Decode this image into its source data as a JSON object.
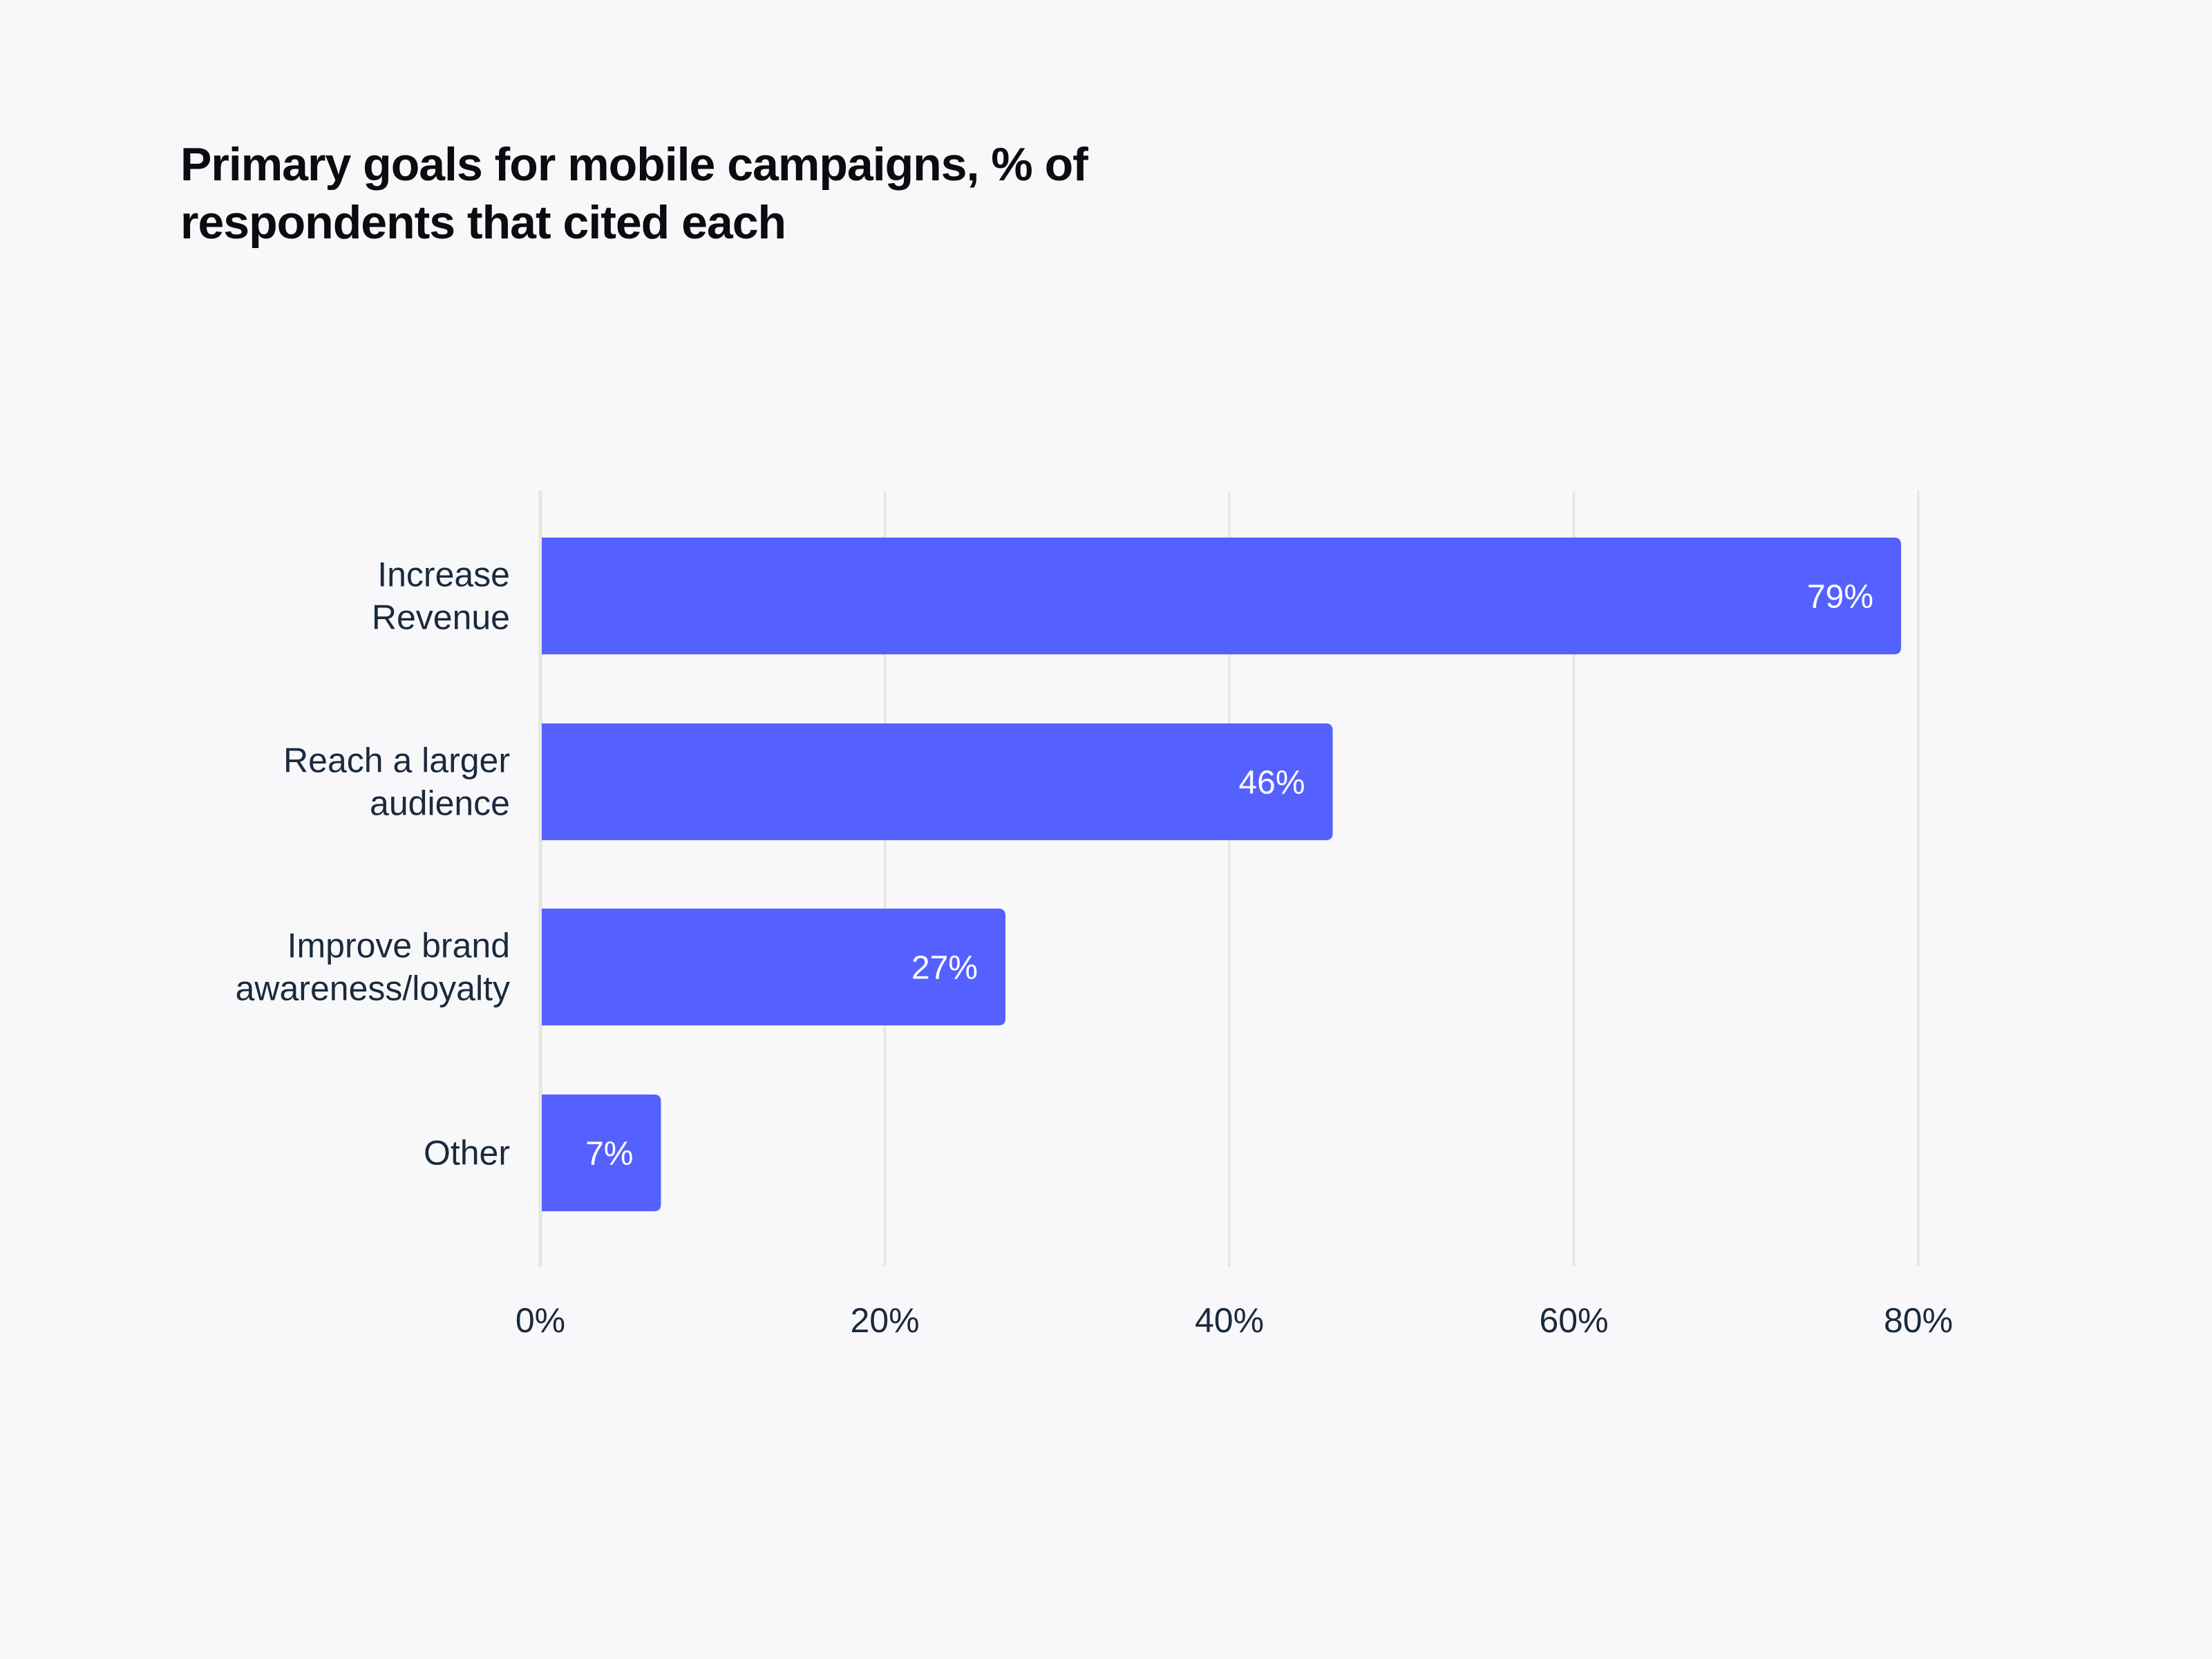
{
  "chart_data": {
    "type": "bar",
    "orientation": "horizontal",
    "title": "Primary goals for mobile campaigns, % of respondents that cited each",
    "categories": [
      [
        "Increase",
        "Revenue"
      ],
      [
        "Reach a larger",
        "audience"
      ],
      [
        "Improve brand",
        "awareness/loyalty"
      ],
      [
        "Other"
      ]
    ],
    "values": [
      79,
      46,
      27,
      7
    ],
    "value_labels": [
      "79%",
      "46%",
      "27%",
      "7%"
    ],
    "xlim": [
      0,
      80
    ],
    "xticks": [
      0,
      20,
      40,
      60,
      80
    ],
    "xtick_labels": [
      "0%",
      "20%",
      "40%",
      "60%",
      "80%"
    ],
    "xlabel": "",
    "ylabel": "",
    "grid": "vertical",
    "colors": {
      "bar": "#5561ff",
      "grid": "#e8e8e2",
      "text": "#1b2a3d",
      "background": "#f8f8fa"
    }
  }
}
